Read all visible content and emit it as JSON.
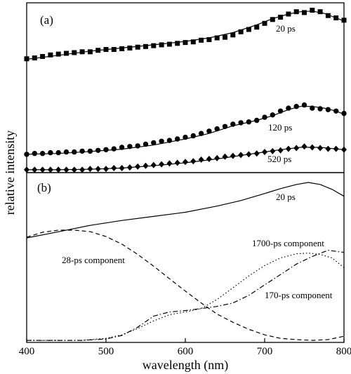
{
  "chart_data": {
    "type": "line",
    "xlabel": "wavelength (nm)",
    "ylabel": "relative intensity",
    "xlim": [
      400,
      800
    ],
    "xticks": [
      400,
      500,
      600,
      700,
      800
    ],
    "grid": false,
    "legend": "none",
    "panels": [
      {
        "label": "(a)",
        "ylim": [
          0,
          1
        ],
        "series": [
          {
            "name": "20 ps",
            "fit": {
              "x": [
                400,
                440,
                480,
                520,
                560,
                600,
                630,
                660,
                690,
                710,
                730,
                745,
                760,
                775,
                790,
                800
              ],
              "y": [
                0.676,
                0.7,
                0.725,
                0.744,
                0.763,
                0.784,
                0.805,
                0.837,
                0.884,
                0.921,
                0.949,
                0.963,
                0.967,
                0.953,
                0.926,
                0.907
              ]
            },
            "points": {
              "marker": "square",
              "x": [
                400,
                410,
                420,
                430,
                440,
                450,
                460,
                470,
                480,
                490,
                500,
                510,
                520,
                530,
                540,
                550,
                560,
                570,
                580,
                590,
                600,
                610,
                620,
                630,
                640,
                650,
                660,
                670,
                680,
                690,
                700,
                710,
                720,
                730,
                740,
                750,
                760,
                770,
                780,
                790,
                800
              ],
              "y": [
                0.679,
                0.684,
                0.693,
                0.702,
                0.707,
                0.712,
                0.716,
                0.721,
                0.721,
                0.73,
                0.735,
                0.735,
                0.74,
                0.744,
                0.749,
                0.753,
                0.758,
                0.763,
                0.767,
                0.772,
                0.777,
                0.781,
                0.791,
                0.795,
                0.805,
                0.809,
                0.823,
                0.842,
                0.856,
                0.87,
                0.893,
                0.916,
                0.93,
                0.949,
                0.963,
                0.958,
                0.972,
                0.963,
                0.94,
                0.926,
                0.912
              ]
            }
          },
          {
            "name": "120 ps",
            "fit": {
              "x": [
                400,
                440,
                480,
                520,
                560,
                600,
                630,
                660,
                690,
                710,
                730,
                745,
                760,
                775,
                790,
                800
              ],
              "y": [
                0.102,
                0.107,
                0.119,
                0.133,
                0.158,
                0.195,
                0.228,
                0.274,
                0.307,
                0.335,
                0.372,
                0.391,
                0.391,
                0.381,
                0.363,
                0.344
              ]
            },
            "points": {
              "marker": "circle",
              "x": [
                400,
                410,
                420,
                430,
                440,
                450,
                460,
                470,
                480,
                490,
                500,
                510,
                520,
                530,
                540,
                550,
                560,
                570,
                580,
                590,
                600,
                610,
                620,
                630,
                640,
                650,
                660,
                670,
                680,
                690,
                700,
                710,
                720,
                730,
                740,
                750,
                760,
                770,
                780,
                790,
                800
              ],
              "y": [
                0.102,
                0.107,
                0.107,
                0.112,
                0.112,
                0.116,
                0.116,
                0.121,
                0.121,
                0.126,
                0.13,
                0.135,
                0.144,
                0.149,
                0.153,
                0.163,
                0.172,
                0.181,
                0.186,
                0.195,
                0.205,
                0.214,
                0.228,
                0.242,
                0.256,
                0.27,
                0.284,
                0.293,
                0.298,
                0.307,
                0.326,
                0.34,
                0.363,
                0.381,
                0.391,
                0.4,
                0.381,
                0.377,
                0.372,
                0.363,
                0.349
              ]
            }
          },
          {
            "name": "520 ps",
            "fit": {
              "x": [
                400,
                440,
                480,
                520,
                560,
                600,
                640,
                680,
                720,
                745,
                770,
                800
              ],
              "y": [
                0.009,
                0.009,
                0.012,
                0.019,
                0.033,
                0.051,
                0.074,
                0.102,
                0.13,
                0.144,
                0.144,
                0.13
              ]
            },
            "points": {
              "marker": "diamond",
              "x": [
                400,
                410,
                420,
                430,
                440,
                450,
                460,
                470,
                480,
                490,
                500,
                510,
                520,
                530,
                540,
                550,
                560,
                570,
                580,
                590,
                600,
                610,
                620,
                630,
                640,
                650,
                660,
                670,
                680,
                690,
                700,
                710,
                720,
                730,
                740,
                750,
                760,
                770,
                780,
                790,
                800
              ],
              "y": [
                0.009,
                0.009,
                0.009,
                0.009,
                0.009,
                0.009,
                0.009,
                0.009,
                0.014,
                0.014,
                0.014,
                0.019,
                0.019,
                0.023,
                0.028,
                0.033,
                0.037,
                0.042,
                0.047,
                0.051,
                0.056,
                0.06,
                0.07,
                0.074,
                0.079,
                0.088,
                0.093,
                0.098,
                0.102,
                0.107,
                0.116,
                0.121,
                0.126,
                0.135,
                0.14,
                0.149,
                0.144,
                0.14,
                0.135,
                0.135,
                0.13
              ]
            }
          }
        ],
        "annotations": [
          "20 ps",
          "120 ps",
          "520 ps"
        ]
      },
      {
        "label": "(b)",
        "ylim": [
          0,
          1
        ],
        "series": [
          {
            "name": "20 ps",
            "line_style": "solid",
            "x": [
              400,
              440,
              480,
              520,
              560,
              600,
              640,
              670,
              700,
              720,
              740,
              755,
              770,
              785,
              800
            ],
            "y": [
              0.65,
              0.689,
              0.729,
              0.76,
              0.786,
              0.812,
              0.851,
              0.886,
              0.93,
              0.961,
              0.987,
              1.0,
              0.987,
              0.956,
              0.913
            ]
          },
          {
            "name": "28-ps component",
            "line_style": "dashed",
            "x": [
              400,
              420,
              440,
              460,
              480,
              500,
              520,
              540,
              560,
              580,
              600,
              620,
              640,
              660,
              680,
              700,
              720,
              740,
              760,
              780,
              800
            ],
            "y": [
              0.655,
              0.686,
              0.699,
              0.699,
              0.69,
              0.659,
              0.611,
              0.546,
              0.472,
              0.393,
              0.315,
              0.24,
              0.17,
              0.118,
              0.074,
              0.039,
              0.017,
              0.009,
              0.004,
              0.009,
              0.03
            ]
          },
          {
            "name": "1700-ps component",
            "line_style": "dotted",
            "x": [
              400,
              470,
              500,
              520,
              540,
              560,
              580,
              600,
              620,
              640,
              660,
              680,
              700,
              720,
              740,
              755,
              770,
              785,
              800
            ],
            "y": [
              0.004,
              0.004,
              0.017,
              0.039,
              0.079,
              0.127,
              0.166,
              0.183,
              0.205,
              0.262,
              0.336,
              0.41,
              0.476,
              0.524,
              0.55,
              0.555,
              0.546,
              0.524,
              0.463
            ]
          },
          {
            "name": "170-ps component",
            "line_style": "dashdot",
            "x": [
              400,
              470,
              500,
              520,
              540,
              560,
              580,
              600,
              620,
              640,
              660,
              680,
              700,
              720,
              740,
              760,
              780,
              800
            ],
            "y": [
              0.004,
              0.004,
              0.013,
              0.035,
              0.087,
              0.157,
              0.183,
              0.192,
              0.205,
              0.218,
              0.24,
              0.288,
              0.354,
              0.419,
              0.485,
              0.533,
              0.572,
              0.559
            ]
          }
        ],
        "annotations": [
          "20 ps",
          "28-ps component",
          "1700-ps component",
          "170-ps component"
        ]
      }
    ]
  }
}
